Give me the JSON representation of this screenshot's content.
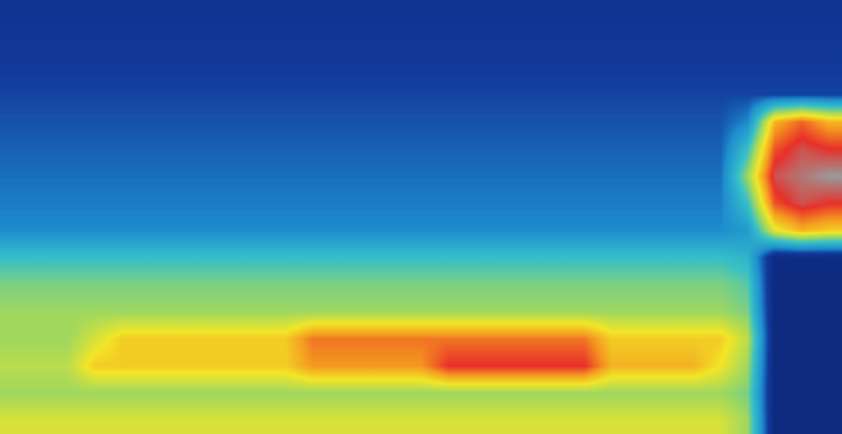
{
  "chart_data": {
    "type": "heatmap",
    "tick_labels": false,
    "color_range": [
      -90,
      -30
    ],
    "cells": [
      [
        -82,
        -82,
        -82,
        -82,
        -82,
        -82,
        -82,
        -82,
        -82,
        -82,
        -82,
        -82,
        -82,
        -82,
        -82,
        -82,
        -82,
        -82,
        -82,
        -82,
        -82,
        -82,
        -82,
        -82,
        -82,
        -82,
        -82,
        -82,
        -82,
        -82,
        -82
      ],
      [
        -81,
        -81,
        -81,
        -81,
        -81,
        -81,
        -81,
        -81,
        -81,
        -81,
        -81,
        -81,
        -81,
        -81,
        -81,
        -81,
        -81,
        -81,
        -81,
        -81,
        -81,
        -81,
        -81,
        -81,
        -81,
        -81,
        -81,
        -81,
        -81,
        -81,
        -81
      ],
      [
        -80,
        -80,
        -80,
        -80,
        -80,
        -80,
        -80,
        -80,
        -80,
        -80,
        -80,
        -80,
        -80,
        -80,
        -80,
        -80,
        -80,
        -80,
        -80,
        -80,
        -80,
        -80,
        -80,
        -80,
        -80,
        -80,
        -80,
        -80,
        -80,
        -80,
        -80
      ],
      [
        -79,
        -79,
        -79,
        -79,
        -79,
        -79,
        -79,
        -79,
        -79,
        -79,
        -79,
        -79,
        -79,
        -79,
        -79,
        -79,
        -79,
        -79,
        -79,
        -79,
        -79,
        -79,
        -79,
        -79,
        -79,
        -79,
        -79,
        -79,
        -79,
        -79,
        -79
      ],
      [
        -78,
        -78,
        -78,
        -78,
        -78,
        -78,
        -78,
        -78,
        -78,
        -78,
        -78,
        -78,
        -78,
        -78,
        -78,
        -78,
        -78,
        -78,
        -78,
        -78,
        -78,
        -78,
        -78,
        -78,
        -78,
        -78,
        -78,
        -74,
        -50,
        -45,
        -50
      ],
      [
        -77,
        -77,
        -77,
        -77,
        -77,
        -77,
        -77,
        -77,
        -77,
        -77,
        -77,
        -77,
        -77,
        -77,
        -77,
        -77,
        -77,
        -77,
        -77,
        -77,
        -77,
        -77,
        -77,
        -77,
        -77,
        -77,
        -77,
        -66,
        -44,
        -40,
        -42
      ],
      [
        -76,
        -76,
        -76,
        -76,
        -76,
        -76,
        -76,
        -76,
        -76,
        -76,
        -76,
        -76,
        -76,
        -76,
        -76,
        -76,
        -76,
        -76,
        -76,
        -76,
        -76,
        -76,
        -76,
        -76,
        -76,
        -76,
        -76,
        -60,
        -40,
        -38,
        -36
      ],
      [
        -75,
        -75,
        -75,
        -75,
        -75,
        -75,
        -75,
        -75,
        -75,
        -75,
        -75,
        -75,
        -75,
        -75,
        -75,
        -75,
        -75,
        -75,
        -75,
        -75,
        -75,
        -75,
        -75,
        -75,
        -75,
        -75,
        -75,
        -66,
        -44,
        -40,
        -42
      ],
      [
        -74,
        -74,
        -74,
        -74,
        -74,
        -74,
        -74,
        -74,
        -74,
        -74,
        -74,
        -74,
        -74,
        -74,
        -74,
        -74,
        -74,
        -74,
        -74,
        -74,
        -74,
        -74,
        -74,
        -74,
        -74,
        -74,
        -74,
        -72,
        -55,
        -50,
        -52
      ],
      [
        -66,
        -66,
        -66,
        -66,
        -66,
        -66,
        -66,
        -66,
        -66,
        -66,
        -66,
        -66,
        -66,
        -66,
        -66,
        -66,
        -66,
        -66,
        -66,
        -66,
        -66,
        -66,
        -66,
        -66,
        -66,
        -66,
        -66,
        -68,
        -85,
        -85,
        -85
      ],
      [
        -62,
        -62,
        -62,
        -62,
        -62,
        -62,
        -62,
        -62,
        -62,
        -62,
        -62,
        -62,
        -62,
        -62,
        -62,
        -62,
        -62,
        -62,
        -62,
        -62,
        -62,
        -62,
        -62,
        -62,
        -62,
        -62,
        -62,
        -64,
        -86,
        -86,
        -86
      ],
      [
        -60,
        -60,
        -60,
        -60,
        -60,
        -60,
        -60,
        -60,
        -60,
        -60,
        -60,
        -60,
        -60,
        -60,
        -60,
        -60,
        -60,
        -60,
        -60,
        -60,
        -60,
        -60,
        -60,
        -60,
        -60,
        -60,
        -60,
        -62,
        -86,
        -86,
        -86
      ],
      [
        -60,
        -60,
        -60,
        -56,
        -52,
        -52,
        -52,
        -52,
        -52,
        -52,
        -52,
        -46,
        -46,
        -46,
        -46,
        -46,
        -46,
        -46,
        -46,
        -46,
        -46,
        -46,
        -52,
        -52,
        -52,
        -52,
        -52,
        -58,
        -86,
        -86,
        -86
      ],
      [
        -58,
        -58,
        -58,
        -52,
        -52,
        -52,
        -52,
        -52,
        -52,
        -52,
        -52,
        -48,
        -48,
        -48,
        -48,
        -48,
        -42,
        -42,
        -42,
        -42,
        -42,
        -42,
        -50,
        -50,
        -50,
        -50,
        -54,
        -60,
        -86,
        -86,
        -86
      ],
      [
        -60,
        -60,
        -60,
        -60,
        -60,
        -60,
        -60,
        -60,
        -60,
        -60,
        -60,
        -60,
        -60,
        -60,
        -60,
        -60,
        -60,
        -60,
        -60,
        -60,
        -60,
        -60,
        -60,
        -60,
        -60,
        -60,
        -60,
        -62,
        -86,
        -86,
        -86
      ],
      [
        -56,
        -56,
        -56,
        -56,
        -56,
        -56,
        -56,
        -56,
        -56,
        -56,
        -56,
        -56,
        -56,
        -56,
        -56,
        -56,
        -56,
        -56,
        -56,
        -56,
        -56,
        -56,
        -56,
        -56,
        -56,
        -56,
        -56,
        -60,
        -86,
        -86,
        -86
      ]
    ]
  }
}
